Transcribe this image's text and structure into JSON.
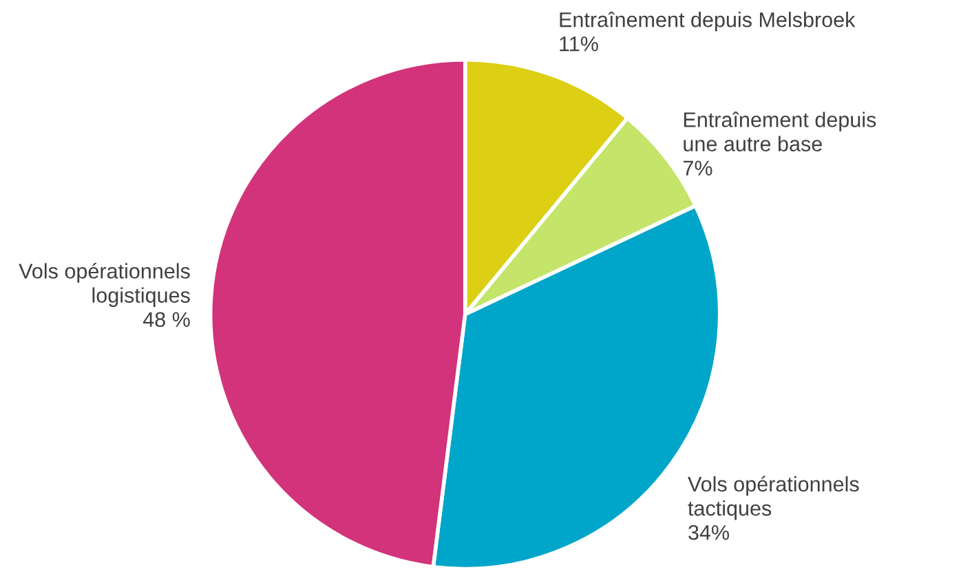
{
  "chart_data": {
    "type": "pie",
    "categories": [
      "Entraînement depuis Melsbroek",
      "Entraînement depuis\nune autre base",
      "Vols opérationnels\ntactiques",
      "Vols opérationnels\nlogistiques"
    ],
    "values": [
      11,
      7,
      34,
      48
    ],
    "value_labels": [
      "11%",
      "7%",
      "34%",
      "48 %"
    ],
    "colors": [
      "#dccf14",
      "#c5e46a",
      "#00a6c9",
      "#d2337a"
    ],
    "legend": false
  }
}
